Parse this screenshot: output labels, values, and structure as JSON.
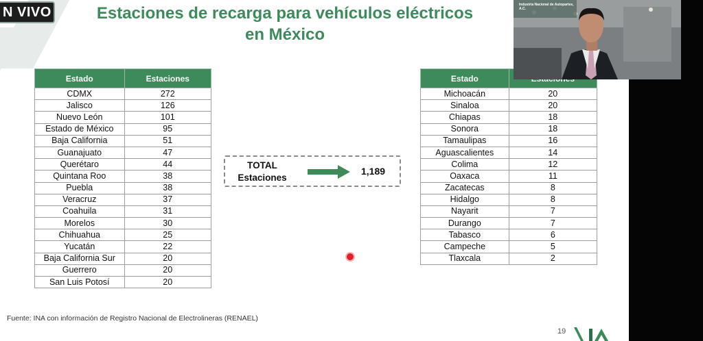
{
  "live_label": "N VIVO",
  "title_line1": "Estaciones de recarga para vehículos eléctricos",
  "title_line2": "en México",
  "table_left": {
    "headers": [
      "Estado",
      "Estaciones"
    ],
    "rows": [
      [
        "CDMX",
        "272"
      ],
      [
        "Jalisco",
        "126"
      ],
      [
        "Nuevo León",
        "101"
      ],
      [
        "Estado de México",
        "95"
      ],
      [
        "Baja California",
        "51"
      ],
      [
        "Guanajuato",
        "47"
      ],
      [
        "Querétaro",
        "44"
      ],
      [
        "Quintana Roo",
        "38"
      ],
      [
        "Puebla",
        "38"
      ],
      [
        "Veracruz",
        "37"
      ],
      [
        "Coahuila",
        "31"
      ],
      [
        "Morelos",
        "30"
      ],
      [
        "Chihuahua",
        "25"
      ],
      [
        "Yucatán",
        "22"
      ],
      [
        "Baja California Sur",
        "20"
      ],
      [
        "Guerrero",
        "20"
      ],
      [
        "San Luis Potosí",
        "20"
      ]
    ]
  },
  "table_right": {
    "headers": [
      "Estado",
      "Estaciones"
    ],
    "rows": [
      [
        "Michoacán",
        "20"
      ],
      [
        "Sinaloa",
        "20"
      ],
      [
        "Chiapas",
        "18"
      ],
      [
        "Sonora",
        "18"
      ],
      [
        "Tamaulipas",
        "16"
      ],
      [
        "Aguascalientes",
        "14"
      ],
      [
        "Colima",
        "12"
      ],
      [
        "Oaxaca",
        "11"
      ],
      [
        "Zacatecas",
        "8"
      ],
      [
        "Hidalgo",
        "8"
      ],
      [
        "Nayarit",
        "7"
      ],
      [
        "Durango",
        "7"
      ],
      [
        "Tabasco",
        "6"
      ],
      [
        "Campeche",
        "5"
      ],
      [
        "Tlaxcala",
        "2"
      ]
    ]
  },
  "total": {
    "label_line1": "TOTAL",
    "label_line2": "Estaciones",
    "value": "1,189",
    "arrow_icon": "right-arrow-icon"
  },
  "source": "Fuente:  INA con información de Registro Nacional de Electrolineras (RENAEL)",
  "page_number": "19",
  "webcam": {
    "logo_text": "Industria Nacional de Autopartes, A.C."
  },
  "colors": {
    "accent_green": "#3d8a5a",
    "title_green": "#3e8a5d",
    "laser_red": "#e0202a"
  }
}
